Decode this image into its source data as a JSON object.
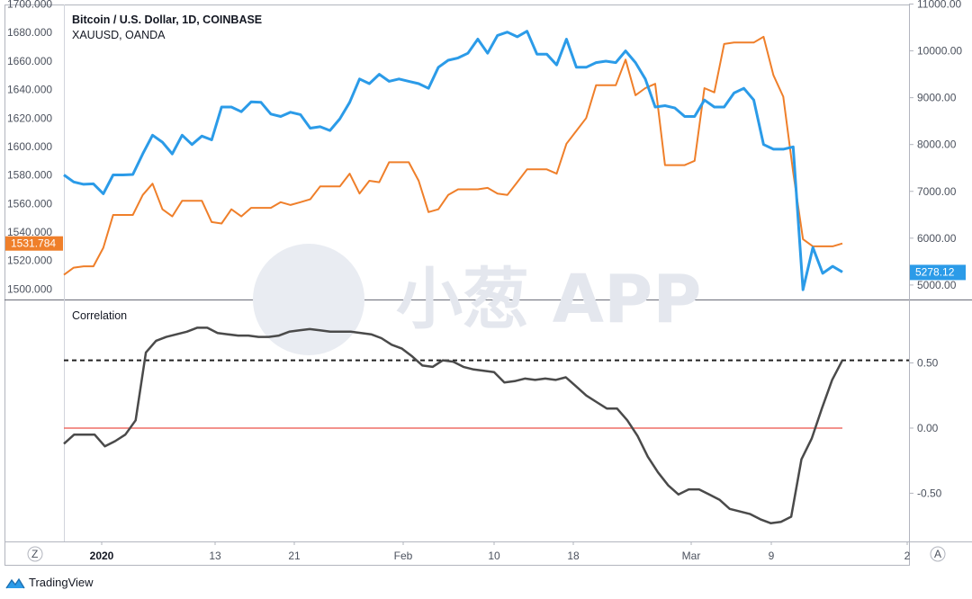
{
  "header": {
    "title": "Bitcoin / U.S. Dollar, 1D, COINBASE",
    "subtitle": "XAUUSD, OANDA"
  },
  "watermark": {
    "text": "小葱 APP"
  },
  "branding": {
    "name": "TradingView"
  },
  "corner_buttons": {
    "left": "Z",
    "right": "A"
  },
  "colors": {
    "btc": "#2b9be8",
    "gold": "#ef7f2a",
    "corr": "#4a4a4a",
    "zero": "#ef6f66"
  },
  "chart_data": [
    {
      "type": "line",
      "title": "Bitcoin / U.S. Dollar, 1D, COINBASE",
      "x_ticks": [
        "2020",
        "13",
        "21",
        "Feb",
        "10",
        "18",
        "Mar",
        "9",
        "2"
      ],
      "y_left_ticks": [
        "1500.000",
        "1520.000",
        "1540.000",
        "1560.000",
        "1580.000",
        "1600.000",
        "1620.000",
        "1640.000",
        "1660.000",
        "1680.000",
        "1700.000"
      ],
      "y_right_ticks": [
        "5000.00",
        "6000.00",
        "7000.00",
        "8000.00",
        "9000.00",
        "10000.00",
        "11000.00"
      ],
      "ylim_left": [
        1493,
        1700
      ],
      "ylim_right": [
        4700,
        11000
      ],
      "last_gold_label": "1531.784",
      "last_btc_label": "5278.12",
      "series": [
        {
          "name": "XAUUSD, OANDA",
          "axis": "left",
          "values": [
            1510,
            1515,
            1516,
            1516,
            1529,
            1552,
            1552,
            1552,
            1566,
            1574,
            1556,
            1551,
            1562,
            1562,
            1562,
            1547,
            1546,
            1556,
            1551,
            1557,
            1557,
            1557,
            1561,
            1559,
            1561,
            1563,
            1572,
            1572,
            1572,
            1581,
            1567,
            1576,
            1575,
            1589,
            1589,
            1589,
            1576,
            1554,
            1556,
            1566,
            1570,
            1570,
            1570,
            1571,
            1567,
            1566,
            1575,
            1584,
            1584,
            1584,
            1581,
            1602,
            1611,
            1620,
            1643,
            1643,
            1643,
            1661,
            1636,
            1641,
            1644,
            1587,
            1587,
            1587,
            1590,
            1641,
            1638,
            1672,
            1673,
            1673,
            1673,
            1677,
            1650,
            1635,
            1582,
            1535,
            1530,
            1530,
            1530,
            1532
          ]
        },
        {
          "name": "Bitcoin / U.S. Dollar, 1D, COINBASE",
          "axis": "right",
          "values": [
            7350,
            7200,
            7150,
            7160,
            6950,
            7350,
            7350,
            7360,
            7800,
            8200,
            8050,
            7800,
            8200,
            8000,
            8180,
            8100,
            8800,
            8800,
            8700,
            8910,
            8900,
            8650,
            8600,
            8690,
            8640,
            8350,
            8380,
            8300,
            8550,
            8900,
            9400,
            9300,
            9500,
            9350,
            9400,
            9350,
            9300,
            9200,
            9650,
            9800,
            9850,
            9950,
            10250,
            9950,
            10330,
            10400,
            10300,
            10420,
            9930,
            9930,
            9700,
            10250,
            9650,
            9650,
            9750,
            9780,
            9750,
            10000,
            9750,
            9400,
            8800,
            8830,
            8780,
            8600,
            8600,
            8950,
            8800,
            8800,
            9100,
            9200,
            8950,
            8000,
            7900,
            7900,
            7950,
            4900,
            5800,
            5250,
            5400,
            5278
          ]
        }
      ]
    },
    {
      "type": "line",
      "title": "Correlation",
      "y_ticks": [
        "0.50",
        "0.00",
        "-0.50"
      ],
      "ylim": [
        -0.87,
        0.98
      ],
      "reference_lines": [
        0.52,
        0.0
      ],
      "series": [
        {
          "name": "Correlation",
          "values": [
            -0.12,
            -0.05,
            -0.05,
            -0.05,
            -0.14,
            -0.1,
            -0.05,
            0.06,
            0.58,
            0.67,
            0.7,
            0.72,
            0.74,
            0.77,
            0.77,
            0.73,
            0.72,
            0.71,
            0.71,
            0.7,
            0.7,
            0.71,
            0.74,
            0.75,
            0.76,
            0.75,
            0.74,
            0.74,
            0.74,
            0.73,
            0.72,
            0.69,
            0.64,
            0.61,
            0.55,
            0.48,
            0.47,
            0.52,
            0.51,
            0.47,
            0.45,
            0.44,
            0.43,
            0.35,
            0.36,
            0.38,
            0.37,
            0.38,
            0.37,
            0.39,
            0.32,
            0.25,
            0.2,
            0.15,
            0.15,
            0.06,
            -0.06,
            -0.22,
            -0.34,
            -0.44,
            -0.51,
            -0.47,
            -0.47,
            -0.51,
            -0.55,
            -0.62,
            -0.64,
            -0.66,
            -0.7,
            -0.73,
            -0.72,
            -0.68,
            -0.24,
            -0.08,
            0.15,
            0.37,
            0.52
          ]
        }
      ]
    }
  ]
}
